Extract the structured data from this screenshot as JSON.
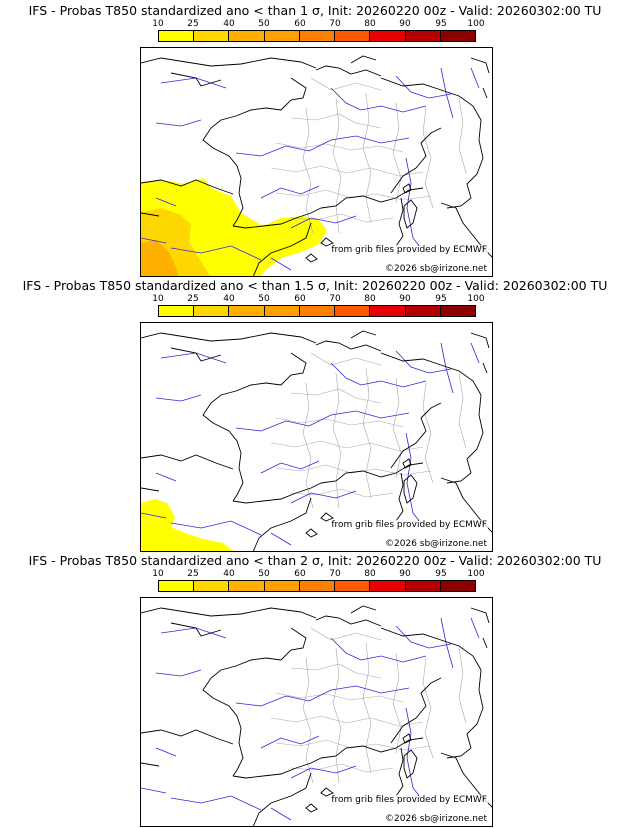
{
  "scale": {
    "labels": [
      "10",
      "25",
      "40",
      "50",
      "60",
      "70",
      "80",
      "90",
      "95",
      "100"
    ],
    "colors": [
      "#ffff00",
      "#ffd700",
      "#ffb000",
      "#ffa000",
      "#ff8000",
      "#ff5a00",
      "#e60000",
      "#b40000",
      "#8c0000",
      "#5a0000"
    ]
  },
  "panels": [
    {
      "title": "IFS - Probas T850  standardized ano < than 1 σ, Init: 20260220 00z - Valid: 20260302:00 TU",
      "coverage": "large"
    },
    {
      "title": "IFS - Probas T850  standardized ano < than 1.5 σ, Init: 20260220 00z - Valid: 20260302:00 TU",
      "coverage": "small"
    },
    {
      "title": "IFS - Probas T850  standardized ano < than 2 σ, Init: 20260220 00z - Valid: 20260302:00 TU",
      "coverage": "none"
    }
  ],
  "credits": {
    "source": "from grib files provided by ECMWF",
    "copyright": "©2026 sb@irizone.net"
  },
  "colors": {
    "coast": "#000000",
    "rivers": "#2a2adc",
    "departments": "#a8a8a8"
  }
}
